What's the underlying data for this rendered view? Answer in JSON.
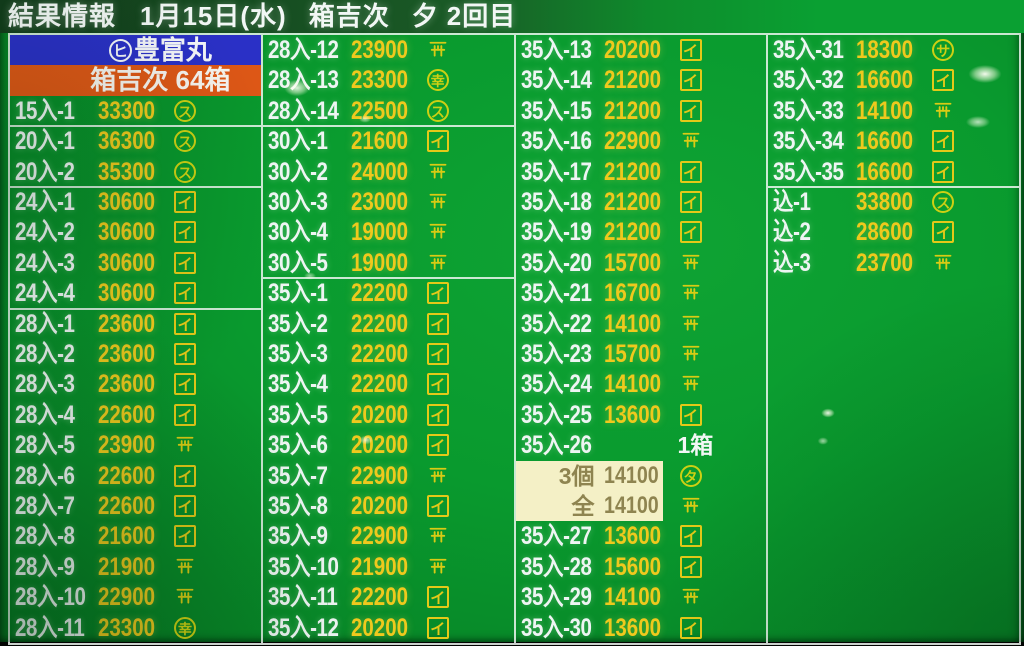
{
  "header": {
    "title": "結果情報",
    "date": "1月15日(水)",
    "market": "箱吉次",
    "session": "夕",
    "round": "2回目"
  },
  "banners": {
    "vessel": {
      "mark": "ヒ",
      "name": "豊富丸",
      "bg_color": "#2a30c6"
    },
    "lot": {
      "text": "箱吉次 64箱",
      "bg_color": "#dd5716"
    }
  },
  "colors": {
    "body_green": "#0ba232",
    "price_gold": "#efc91d",
    "label_white": "#eef5f3",
    "highlight_cream": "#f4f0c6",
    "highlight_text": "#8e8450"
  },
  "columns": [
    {
      "groups": [
        {
          "rows": [
            {
              "type": "vessel"
            },
            {
              "type": "lot"
            },
            {
              "type": "result",
              "label": "15入-1",
              "price": "33300",
              "mark": {
                "shape": "circle",
                "char": "ス"
              }
            }
          ]
        },
        {
          "rows": [
            {
              "type": "result",
              "label": "20入-1",
              "price": "36300",
              "mark": {
                "shape": "circle",
                "char": "ス"
              }
            },
            {
              "type": "result",
              "label": "20入-2",
              "price": "35300",
              "mark": {
                "shape": "circle",
                "char": "ス"
              }
            }
          ]
        },
        {
          "rows": [
            {
              "type": "result",
              "label": "24入-1",
              "price": "30600",
              "mark": {
                "shape": "box",
                "char": "イ"
              }
            },
            {
              "type": "result",
              "label": "24入-2",
              "price": "30600",
              "mark": {
                "shape": "box",
                "char": "イ"
              }
            },
            {
              "type": "result",
              "label": "24入-3",
              "price": "30600",
              "mark": {
                "shape": "box",
                "char": "イ"
              }
            },
            {
              "type": "result",
              "label": "24入-4",
              "price": "30600",
              "mark": {
                "shape": "box",
                "char": "イ"
              }
            }
          ]
        },
        {
          "rows": [
            {
              "type": "result",
              "label": "28入-1",
              "price": "23600",
              "mark": {
                "shape": "box",
                "char": "イ"
              }
            },
            {
              "type": "result",
              "label": "28入-2",
              "price": "23600",
              "mark": {
                "shape": "box",
                "char": "イ"
              }
            },
            {
              "type": "result",
              "label": "28入-3",
              "price": "23600",
              "mark": {
                "shape": "box",
                "char": "イ"
              }
            },
            {
              "type": "result",
              "label": "28入-4",
              "price": "22600",
              "mark": {
                "shape": "box",
                "char": "イ"
              }
            },
            {
              "type": "result",
              "label": "28入-5",
              "price": "23900",
              "mark": {
                "shape": "yama"
              }
            },
            {
              "type": "result",
              "label": "28入-6",
              "price": "22600",
              "mark": {
                "shape": "box",
                "char": "イ"
              }
            },
            {
              "type": "result",
              "label": "28入-7",
              "price": "22600",
              "mark": {
                "shape": "box",
                "char": "イ"
              }
            },
            {
              "type": "result",
              "label": "28入-8",
              "price": "21600",
              "mark": {
                "shape": "box",
                "char": "イ"
              }
            },
            {
              "type": "result",
              "label": "28入-9",
              "price": "21900",
              "mark": {
                "shape": "yama"
              }
            },
            {
              "type": "result",
              "label": "28入-10",
              "price": "22900",
              "mark": {
                "shape": "yama"
              }
            },
            {
              "type": "result",
              "label": "28入-11",
              "price": "23300",
              "mark": {
                "shape": "circle",
                "char": "幸"
              }
            }
          ]
        }
      ]
    },
    {
      "groups": [
        {
          "rows": [
            {
              "type": "result",
              "label": "28入-12",
              "price": "23900",
              "mark": {
                "shape": "yama"
              }
            },
            {
              "type": "result",
              "label": "28入-13",
              "price": "23300",
              "mark": {
                "shape": "circle",
                "char": "幸"
              }
            },
            {
              "type": "result",
              "label": "28入-14",
              "price": "22500",
              "mark": {
                "shape": "circle",
                "char": "ス"
              }
            }
          ]
        },
        {
          "rows": [
            {
              "type": "result",
              "label": "30入-1",
              "price": "21600",
              "mark": {
                "shape": "box",
                "char": "イ"
              }
            },
            {
              "type": "result",
              "label": "30入-2",
              "price": "24000",
              "mark": {
                "shape": "yama"
              }
            },
            {
              "type": "result",
              "label": "30入-3",
              "price": "23000",
              "mark": {
                "shape": "yama"
              }
            },
            {
              "type": "result",
              "label": "30入-4",
              "price": "19000",
              "mark": {
                "shape": "yama"
              }
            },
            {
              "type": "result",
              "label": "30入-5",
              "price": "19000",
              "mark": {
                "shape": "yama"
              }
            }
          ]
        },
        {
          "rows": [
            {
              "type": "result",
              "label": "35入-1",
              "price": "22200",
              "mark": {
                "shape": "box",
                "char": "イ"
              }
            },
            {
              "type": "result",
              "label": "35入-2",
              "price": "22200",
              "mark": {
                "shape": "box",
                "char": "イ"
              }
            },
            {
              "type": "result",
              "label": "35入-3",
              "price": "22200",
              "mark": {
                "shape": "box",
                "char": "イ"
              }
            },
            {
              "type": "result",
              "label": "35入-4",
              "price": "22200",
              "mark": {
                "shape": "box",
                "char": "イ"
              }
            },
            {
              "type": "result",
              "label": "35入-5",
              "price": "20200",
              "mark": {
                "shape": "box",
                "char": "イ"
              }
            },
            {
              "type": "result",
              "label": "35入-6",
              "price": "20200",
              "mark": {
                "shape": "box",
                "char": "イ"
              }
            },
            {
              "type": "result",
              "label": "35入-7",
              "price": "22900",
              "mark": {
                "shape": "yama"
              }
            },
            {
              "type": "result",
              "label": "35入-8",
              "price": "20200",
              "mark": {
                "shape": "box",
                "char": "イ"
              }
            },
            {
              "type": "result",
              "label": "35入-9",
              "price": "22900",
              "mark": {
                "shape": "yama"
              }
            },
            {
              "type": "result",
              "label": "35入-10",
              "price": "21900",
              "mark": {
                "shape": "yama"
              }
            },
            {
              "type": "result",
              "label": "35入-11",
              "price": "22200",
              "mark": {
                "shape": "box",
                "char": "イ"
              }
            },
            {
              "type": "result",
              "label": "35入-12",
              "price": "20200",
              "mark": {
                "shape": "box",
                "char": "イ"
              }
            }
          ]
        }
      ]
    },
    {
      "groups": [
        {
          "rows": [
            {
              "type": "result",
              "label": "35入-13",
              "price": "20200",
              "mark": {
                "shape": "box",
                "char": "イ"
              }
            },
            {
              "type": "result",
              "label": "35入-14",
              "price": "21200",
              "mark": {
                "shape": "box",
                "char": "イ"
              }
            },
            {
              "type": "result",
              "label": "35入-15",
              "price": "21200",
              "mark": {
                "shape": "box",
                "char": "イ"
              }
            },
            {
              "type": "result",
              "label": "35入-16",
              "price": "22900",
              "mark": {
                "shape": "yama"
              }
            },
            {
              "type": "result",
              "label": "35入-17",
              "price": "21200",
              "mark": {
                "shape": "box",
                "char": "イ"
              }
            },
            {
              "type": "result",
              "label": "35入-18",
              "price": "21200",
              "mark": {
                "shape": "box",
                "char": "イ"
              }
            },
            {
              "type": "result",
              "label": "35入-19",
              "price": "21200",
              "mark": {
                "shape": "box",
                "char": "イ"
              }
            },
            {
              "type": "result",
              "label": "35入-20",
              "price": "15700",
              "mark": {
                "shape": "yama"
              }
            },
            {
              "type": "result",
              "label": "35入-21",
              "price": "16700",
              "mark": {
                "shape": "yama"
              }
            },
            {
              "type": "result",
              "label": "35入-22",
              "price": "14100",
              "mark": {
                "shape": "yama"
              }
            },
            {
              "type": "result",
              "label": "35入-23",
              "price": "15700",
              "mark": {
                "shape": "yama"
              }
            },
            {
              "type": "result",
              "label": "35入-24",
              "price": "14100",
              "mark": {
                "shape": "yama"
              }
            },
            {
              "type": "result",
              "label": "35入-25",
              "price": "13600",
              "mark": {
                "shape": "box",
                "char": "イ"
              }
            },
            {
              "type": "result",
              "label": "35入-26",
              "price": "",
              "note": "1箱",
              "mark": null
            },
            {
              "type": "sub",
              "label": "3個",
              "price": "14100",
              "mark": {
                "shape": "circle",
                "char": "タ"
              }
            },
            {
              "type": "sub",
              "label": "全",
              "price": "14100",
              "mark": {
                "shape": "yama"
              }
            },
            {
              "type": "result",
              "label": "35入-27",
              "price": "13600",
              "mark": {
                "shape": "box",
                "char": "イ"
              }
            },
            {
              "type": "result",
              "label": "35入-28",
              "price": "15600",
              "mark": {
                "shape": "box",
                "char": "イ"
              }
            },
            {
              "type": "result",
              "label": "35入-29",
              "price": "14100",
              "mark": {
                "shape": "yama"
              }
            },
            {
              "type": "result",
              "label": "35入-30",
              "price": "13600",
              "mark": {
                "shape": "box",
                "char": "イ"
              }
            }
          ]
        }
      ]
    },
    {
      "groups": [
        {
          "rows": [
            {
              "type": "result",
              "label": "35入-31",
              "price": "18300",
              "mark": {
                "shape": "circle",
                "char": "サ"
              }
            },
            {
              "type": "result",
              "label": "35入-32",
              "price": "16600",
              "mark": {
                "shape": "box",
                "char": "イ"
              }
            },
            {
              "type": "result",
              "label": "35入-33",
              "price": "14100",
              "mark": {
                "shape": "yama"
              }
            },
            {
              "type": "result",
              "label": "35入-34",
              "price": "16600",
              "mark": {
                "shape": "box",
                "char": "イ"
              }
            },
            {
              "type": "result",
              "label": "35入-35",
              "price": "16600",
              "mark": {
                "shape": "box",
                "char": "イ"
              }
            }
          ]
        },
        {
          "rows": [
            {
              "type": "result",
              "label": "込-1",
              "price": "33800",
              "mark": {
                "shape": "circle",
                "char": "ス"
              }
            },
            {
              "type": "result",
              "label": "込-2",
              "price": "28600",
              "mark": {
                "shape": "box",
                "char": "イ"
              }
            },
            {
              "type": "result",
              "label": "込-3",
              "price": "23700",
              "mark": {
                "shape": "yama"
              }
            }
          ]
        }
      ]
    }
  ]
}
